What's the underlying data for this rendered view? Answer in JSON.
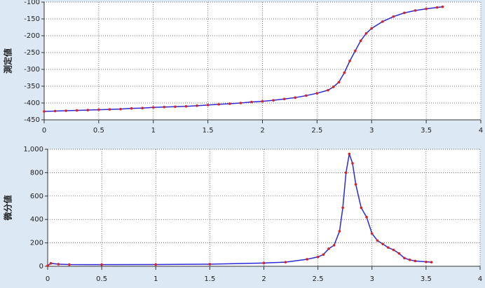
{
  "chart_data": [
    {
      "type": "line",
      "y_label": "測定値",
      "x": [
        0,
        0.1,
        0.2,
        0.3,
        0.4,
        0.5,
        0.6,
        0.7,
        0.8,
        0.9,
        1.0,
        1.1,
        1.2,
        1.3,
        1.4,
        1.5,
        1.6,
        1.7,
        1.8,
        1.9,
        2.0,
        2.1,
        2.2,
        2.3,
        2.4,
        2.5,
        2.6,
        2.65,
        2.7,
        2.75,
        2.8,
        2.85,
        2.9,
        2.95,
        3.0,
        3.1,
        3.2,
        3.3,
        3.4,
        3.5,
        3.6,
        3.65
      ],
      "series": [
        {
          "color": "#2b2bd6",
          "marker_color": "#e02020",
          "values": [
            -425,
            -424,
            -423,
            -422,
            -421,
            -420,
            -419,
            -418,
            -416,
            -415,
            -413,
            -412,
            -411,
            -410,
            -408,
            -406,
            -404,
            -402,
            -400,
            -397,
            -395,
            -392,
            -388,
            -384,
            -378,
            -371,
            -362,
            -352,
            -338,
            -310,
            -275,
            -245,
            -215,
            -193,
            -178,
            -158,
            -143,
            -132,
            -125,
            -120,
            -116,
            -114
          ]
        }
      ],
      "xlim": [
        0,
        4
      ],
      "xticks": [
        0,
        0.5,
        1,
        1.5,
        2,
        2.5,
        3,
        3.5,
        4
      ],
      "ylim": [
        -450,
        -100
      ],
      "yticks": [
        -450,
        -400,
        -350,
        -300,
        -250,
        -200,
        -150,
        -100
      ],
      "grid": true
    },
    {
      "type": "line",
      "y_label": "微分値",
      "x": [
        0,
        0.03,
        0.1,
        0.2,
        0.5,
        1.0,
        1.5,
        2.0,
        2.2,
        2.4,
        2.5,
        2.55,
        2.6,
        2.65,
        2.7,
        2.73,
        2.76,
        2.79,
        2.82,
        2.85,
        2.9,
        2.95,
        3.0,
        3.05,
        3.1,
        3.15,
        3.2,
        3.25,
        3.3,
        3.35,
        3.4,
        3.5,
        3.55
      ],
      "series": [
        {
          "color": "#2b2bd6",
          "marker_color": "#e02020",
          "values": [
            5,
            25,
            18,
            15,
            14,
            15,
            18,
            28,
            35,
            60,
            80,
            100,
            150,
            180,
            300,
            500,
            800,
            960,
            880,
            700,
            500,
            420,
            280,
            220,
            190,
            160,
            140,
            110,
            70,
            55,
            45,
            38,
            35
          ]
        }
      ],
      "xlim": [
        0,
        4
      ],
      "xticks": [
        0,
        0.5,
        1,
        1.5,
        2,
        2.5,
        3,
        3.5,
        4
      ],
      "ylim": [
        0,
        1000
      ],
      "yticks": [
        0,
        200,
        400,
        600,
        800,
        {
          "value": 1000,
          "label": "1,000"
        }
      ],
      "grid": true
    }
  ]
}
